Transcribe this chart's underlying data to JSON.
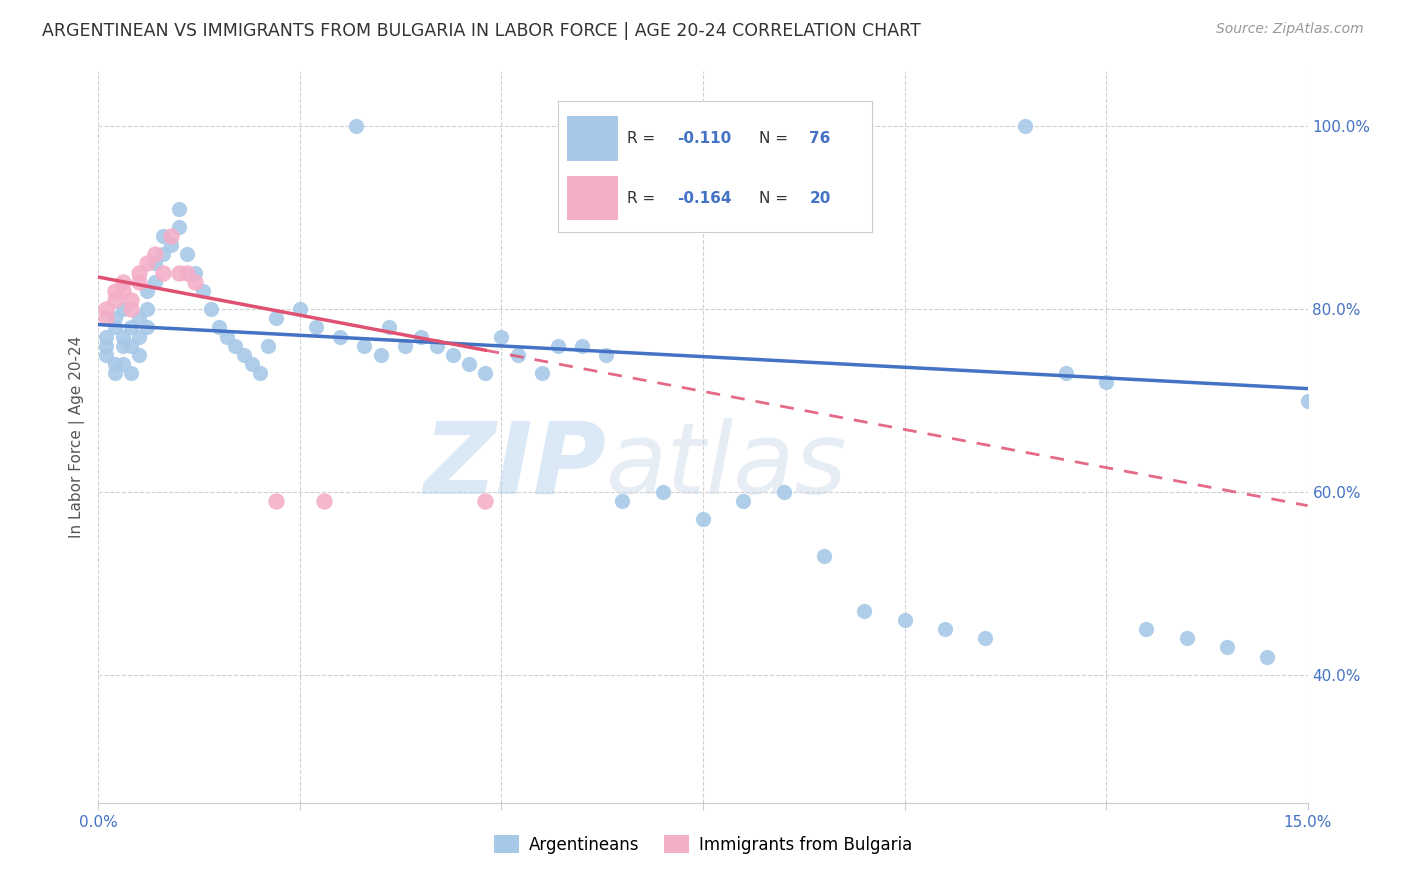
{
  "title": "ARGENTINEAN VS IMMIGRANTS FROM BULGARIA IN LABOR FORCE | AGE 20-24 CORRELATION CHART",
  "source": "Source: ZipAtlas.com",
  "ylabel": "In Labor Force | Age 20-24",
  "xlim": [
    0.0,
    0.15
  ],
  "ylim": [
    0.26,
    1.06
  ],
  "blue_color": "#a8c8e8",
  "pink_color": "#f4afc8",
  "trend_blue": "#4472c4",
  "trend_pink": "#e05070",
  "watermark_zip": "ZIP",
  "watermark_atlas": "atlas",
  "argentineans_x": [
    0.001,
    0.001,
    0.001,
    0.002,
    0.002,
    0.002,
    0.002,
    0.003,
    0.003,
    0.003,
    0.003,
    0.004,
    0.004,
    0.004,
    0.005,
    0.005,
    0.005,
    0.006,
    0.006,
    0.006,
    0.007,
    0.007,
    0.008,
    0.008,
    0.009,
    0.01,
    0.01,
    0.011,
    0.012,
    0.013,
    0.014,
    0.015,
    0.016,
    0.017,
    0.018,
    0.019,
    0.02,
    0.021,
    0.022,
    0.025,
    0.027,
    0.03,
    0.032,
    0.033,
    0.035,
    0.036,
    0.038,
    0.04,
    0.042,
    0.044,
    0.046,
    0.048,
    0.05,
    0.052,
    0.055,
    0.057,
    0.06,
    0.063,
    0.065,
    0.07,
    0.075,
    0.08,
    0.085,
    0.09,
    0.095,
    0.1,
    0.105,
    0.11,
    0.115,
    0.12,
    0.125,
    0.13,
    0.135,
    0.14,
    0.145,
    0.15
  ],
  "argentineans_y": [
    0.77,
    0.76,
    0.75,
    0.79,
    0.78,
    0.74,
    0.73,
    0.8,
    0.77,
    0.76,
    0.74,
    0.78,
    0.76,
    0.73,
    0.79,
    0.77,
    0.75,
    0.82,
    0.8,
    0.78,
    0.85,
    0.83,
    0.88,
    0.86,
    0.87,
    0.91,
    0.89,
    0.86,
    0.84,
    0.82,
    0.8,
    0.78,
    0.77,
    0.76,
    0.75,
    0.74,
    0.73,
    0.76,
    0.79,
    0.8,
    0.78,
    0.77,
    1.0,
    0.76,
    0.75,
    0.78,
    0.76,
    0.77,
    0.76,
    0.75,
    0.74,
    0.73,
    0.77,
    0.75,
    0.73,
    0.76,
    0.76,
    0.75,
    0.59,
    0.6,
    0.57,
    0.59,
    0.6,
    0.53,
    0.47,
    0.46,
    0.45,
    0.44,
    1.0,
    0.73,
    0.72,
    0.45,
    0.44,
    0.43,
    0.42,
    0.7
  ],
  "bulgaria_x": [
    0.001,
    0.001,
    0.002,
    0.002,
    0.003,
    0.003,
    0.004,
    0.004,
    0.005,
    0.005,
    0.006,
    0.007,
    0.008,
    0.009,
    0.01,
    0.011,
    0.012,
    0.022,
    0.028,
    0.048
  ],
  "bulgaria_y": [
    0.8,
    0.79,
    0.82,
    0.81,
    0.83,
    0.82,
    0.81,
    0.8,
    0.84,
    0.83,
    0.85,
    0.86,
    0.84,
    0.88,
    0.84,
    0.84,
    0.83,
    0.59,
    0.59,
    0.59
  ],
  "trend_blue_x0": 0.0,
  "trend_blue_y0": 0.783,
  "trend_blue_x1": 0.15,
  "trend_blue_y1": 0.713,
  "trend_pink_solid_x0": 0.0,
  "trend_pink_solid_y0": 0.835,
  "trend_pink_solid_x1": 0.048,
  "trend_pink_solid_y1": 0.755,
  "trend_pink_dash_x0": 0.048,
  "trend_pink_dash_y0": 0.755,
  "trend_pink_dash_x1": 0.15,
  "trend_pink_dash_y1": 0.585
}
